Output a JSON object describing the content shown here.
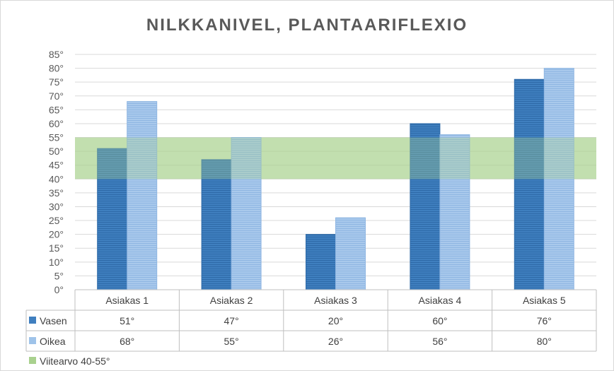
{
  "chart_data": {
    "type": "bar",
    "title": "NILKKANIVEL, PLANTAARIFLEXIO",
    "categories": [
      "Asiakas 1",
      "Asiakas 2",
      "Asiakas 3",
      "Asiakas 4",
      "Asiakas 5"
    ],
    "series": [
      {
        "name": "Vasen",
        "values": [
          51,
          47,
          20,
          60,
          76
        ],
        "labels": [
          "51°",
          "47°",
          "20°",
          "60°",
          "76°"
        ],
        "color": "#3f7fbf"
      },
      {
        "name": "Oikea",
        "values": [
          68,
          55,
          26,
          56,
          80
        ],
        "labels": [
          "68°",
          "55°",
          "26°",
          "56°",
          "80°"
        ],
        "color": "#9fc3e9"
      }
    ],
    "reference_band": {
      "name": "Viitearvo 40-55°",
      "from": 40,
      "to": 55,
      "color": "#a9d18e"
    },
    "yticks": [
      "0°",
      "5°",
      "10°",
      "15°",
      "20°",
      "25°",
      "30°",
      "35°",
      "40°",
      "45°",
      "50°",
      "55°",
      "60°",
      "65°",
      "70°",
      "75°",
      "80°",
      "85°"
    ],
    "ylim": [
      0,
      85
    ],
    "grid": true,
    "data_table": true,
    "legend": "in data table"
  }
}
